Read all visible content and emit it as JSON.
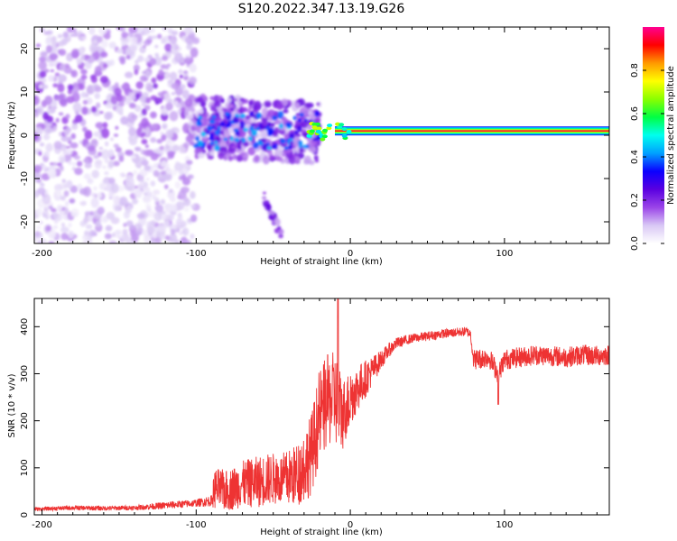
{
  "figure_title": "S120.2022.347.13.19.G26",
  "chart_data": [
    {
      "type": "heatmap",
      "title": "S120.2022.347.13.19.G26",
      "xlabel": "Height of straight line (km)",
      "ylabel": "Frequency (Hz)",
      "xlim": [
        -205,
        168
      ],
      "ylim": [
        -25,
        25
      ],
      "x_ticks": [
        -200,
        -100,
        0,
        100
      ],
      "y_ticks": [
        -20,
        -10,
        0,
        10,
        20
      ],
      "colorbar": {
        "label": "Normalized spectral amplitude",
        "range": [
          0,
          1
        ],
        "ticks": [
          0.0,
          0.2,
          0.4,
          0.6,
          0.8
        ],
        "colormap": [
          "#ffffff",
          "#d9c8f5",
          "#9a44e8",
          "#5a00e0",
          "#0b00ff",
          "#00a0ff",
          "#00ffee",
          "#00ff44",
          "#8aff00",
          "#ffff00",
          "#ff9900",
          "#ff0000",
          "#ff0090"
        ]
      },
      "features": [
        {
          "name": "carrier_line",
          "x_range": [
            -10,
            168
          ],
          "frequency_hz": 1,
          "amplitude": 0.85
        },
        {
          "name": "scatter_region_high_altitude",
          "x_range": [
            -205,
            -100
          ],
          "frequency_range": [
            -25,
            25
          ],
          "amplitude": 0.15
        },
        {
          "name": "scatter_region_transition",
          "x_range": [
            -100,
            -20
          ],
          "frequency_range": [
            -8,
            10
          ],
          "amplitude": 0.3
        },
        {
          "name": "side_branch",
          "x_range": [
            -56,
            -45
          ],
          "frequency_range": [
            -23,
            -13
          ],
          "amplitude": 0.25
        }
      ],
      "grid": false,
      "show_xlabel": true
    },
    {
      "type": "line",
      "xlabel": "Height of straight line (km)",
      "ylabel": "SNR (10 * v/v)",
      "xlim": [
        -205,
        168
      ],
      "ylim": [
        0,
        460
      ],
      "x_ticks": [
        -200,
        -100,
        0,
        100
      ],
      "y_ticks": [
        0,
        100,
        200,
        300,
        400
      ],
      "grid": false,
      "series": [
        {
          "color": "#ee3333",
          "x": [
            -205,
            -180,
            -160,
            -140,
            -120,
            -100,
            -90,
            -88,
            -80,
            -70,
            -60,
            -55,
            -50,
            -45,
            -40,
            -35,
            -30,
            -25,
            -20,
            -15,
            -10,
            -8,
            -5,
            -2,
            0,
            5,
            10,
            15,
            20,
            25,
            30,
            40,
            50,
            60,
            70,
            75,
            78,
            80,
            90,
            96,
            100,
            110,
            120,
            130,
            140,
            150,
            160,
            168
          ],
          "values": [
            12,
            15,
            14,
            15,
            20,
            25,
            30,
            60,
            55,
            70,
            75,
            80,
            82,
            80,
            85,
            90,
            110,
            140,
            220,
            250,
            260,
            240,
            220,
            240,
            250,
            270,
            290,
            310,
            330,
            350,
            365,
            375,
            380,
            385,
            388,
            390,
            385,
            330,
            335,
            300,
            330,
            335,
            340,
            338,
            335,
            340,
            338,
            340
          ],
          "noise": [
            4,
            5,
            5,
            5,
            8,
            8,
            12,
            40,
            40,
            45,
            50,
            50,
            50,
            50,
            55,
            60,
            70,
            80,
            90,
            90,
            90,
            90,
            70,
            60,
            60,
            50,
            40,
            30,
            20,
            15,
            12,
            10,
            10,
            10,
            10,
            10,
            10,
            22,
            22,
            22,
            22,
            22,
            22,
            22,
            22,
            22,
            22,
            22
          ]
        }
      ]
    }
  ]
}
